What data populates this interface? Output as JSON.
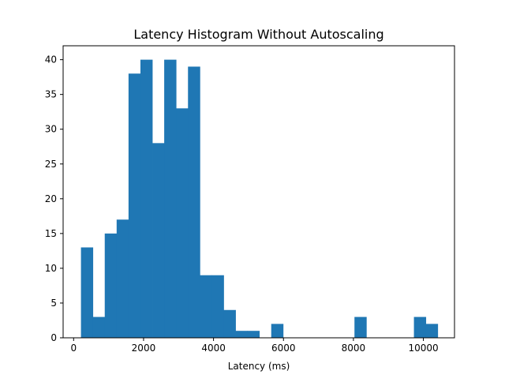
{
  "chart_data": {
    "type": "bar",
    "title": "Latency Histogram Without Autoscaling",
    "xlabel": "Latency (ms)",
    "ylabel": "",
    "xlim": [
      -300,
      10890
    ],
    "ylim": [
      0,
      42
    ],
    "grid": false,
    "legend": "none",
    "bar_color": "#1f77b4",
    "x_ticks": [
      0,
      2000,
      4000,
      6000,
      8000,
      10000
    ],
    "x_tick_labels": [
      "0",
      "2000",
      "4000",
      "6000",
      "8000",
      "10000"
    ],
    "y_ticks": [
      0,
      5,
      10,
      15,
      20,
      25,
      30,
      35,
      40
    ],
    "y_tick_labels": [
      "0",
      "5",
      "10",
      "15",
      "20",
      "25",
      "30",
      "35",
      "40"
    ],
    "bin_edges": [
      210,
      550,
      890,
      1230,
      1570,
      1910,
      2250,
      2590,
      2930,
      3270,
      3610,
      3950,
      4290,
      4630,
      4970,
      5310,
      5650,
      5990,
      6330,
      6670,
      7010,
      7350,
      7690,
      8030,
      8370,
      8710,
      9050,
      9390,
      9730,
      10070,
      10410
    ],
    "counts": [
      13,
      3,
      15,
      17,
      38,
      40,
      28,
      40,
      33,
      39,
      9,
      9,
      4,
      1,
      1,
      0,
      2,
      0,
      0,
      0,
      0,
      0,
      0,
      3,
      0,
      0,
      0,
      0,
      3,
      2
    ]
  }
}
